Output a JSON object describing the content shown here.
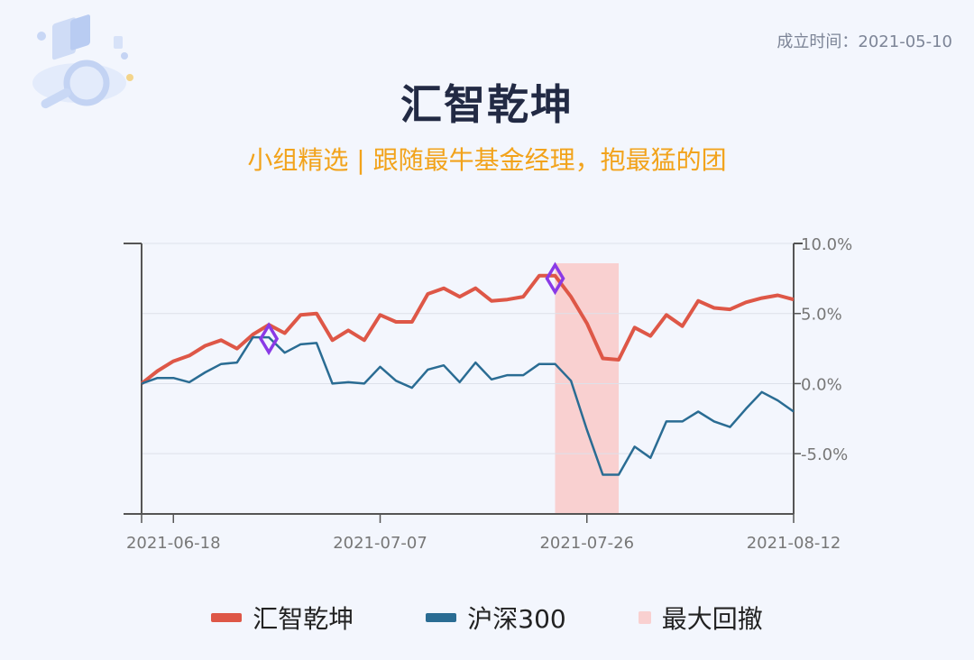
{
  "header": {
    "establish_date": "成立时间：2021-05-10",
    "title": "汇智乾坤",
    "subtitle": "小组精选 | 跟随最牛基金经理，抱最猛的团"
  },
  "colors": {
    "fund": "#de5747",
    "index": "#2a6c93",
    "drawdown": "#f9d0d0",
    "marker": "#8a3ae6"
  },
  "chart_data": {
    "type": "line",
    "title": "",
    "xlabel": "",
    "ylabel": "",
    "x_ticks": [
      "2021-06-18",
      "2021-07-07",
      "2021-07-26",
      "2021-08-12"
    ],
    "y_ticks": [
      "10.0%",
      "5.0%",
      "0.0%",
      "-5.0%"
    ],
    "ylim": [
      -9.3,
      10
    ],
    "grid": "horizontal",
    "series": [
      {
        "name": "汇智乾坤",
        "values": [
          0.0,
          0.9,
          1.6,
          2.0,
          2.7,
          3.1,
          2.5,
          3.5,
          4.2,
          3.6,
          4.9,
          5.0,
          3.1,
          3.8,
          3.1,
          4.9,
          4.4,
          4.4,
          6.4,
          6.8,
          6.2,
          6.8,
          5.9,
          6.0,
          6.2,
          7.7,
          7.7,
          6.2,
          4.3,
          1.8,
          1.7,
          4.0,
          3.4,
          4.9,
          4.1,
          5.9,
          5.4,
          5.3,
          5.8,
          6.1,
          6.3,
          6.0
        ]
      },
      {
        "name": "沪深300",
        "values": [
          0.0,
          0.4,
          0.4,
          0.1,
          0.8,
          1.4,
          1.5,
          3.3,
          3.3,
          2.2,
          2.8,
          2.9,
          0.0,
          0.1,
          0.0,
          1.2,
          0.2,
          -0.3,
          1.0,
          1.3,
          0.1,
          1.5,
          0.3,
          0.6,
          0.6,
          1.4,
          1.4,
          0.2,
          -3.3,
          -6.5,
          -6.5,
          -4.5,
          -5.3,
          -2.7,
          -2.7,
          -2.0,
          -2.7,
          -3.1,
          -1.8,
          -0.6,
          -1.2,
          -2.0
        ]
      }
    ],
    "drawdown_label": "最大回撤",
    "drawdown": {
      "start_index": 26,
      "end_index": 30
    },
    "markers": [
      {
        "index": 8,
        "value": 3.2
      },
      {
        "index": 26,
        "value": 7.5
      }
    ],
    "legend": [
      "汇智乾坤",
      "沪深300",
      "最大回撤"
    ],
    "legend_position": "bottom"
  }
}
